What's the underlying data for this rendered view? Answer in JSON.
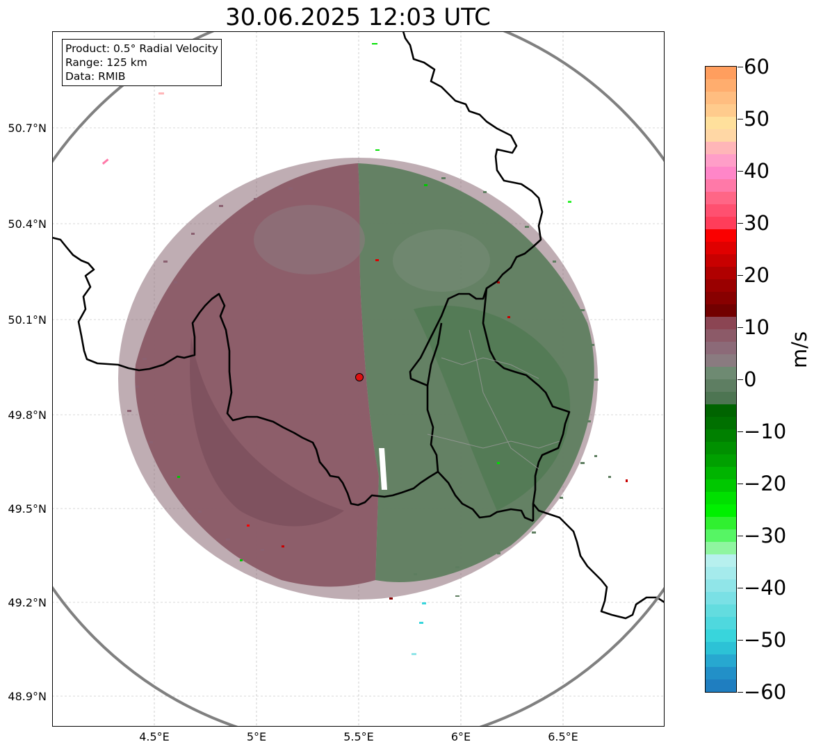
{
  "title": "30.06.2025 12:03 UTC",
  "info": {
    "product": "Product: 0.5° Radial Velocity",
    "range": "Range: 125 km",
    "data": "Data: RMIB"
  },
  "lat_labels": [
    "50.7°N",
    "50.4°N",
    "50.1°N",
    "49.8°N",
    "49.5°N",
    "49.2°N",
    "48.9°N"
  ],
  "lon_labels": [
    "4.5°E",
    "5°E",
    "5.5°E",
    "6°E",
    "6.5°E"
  ],
  "colorbar": {
    "unit": "m/s",
    "tick_labels": [
      "60",
      "50",
      "40",
      "30",
      "20",
      "10",
      "0",
      "−10",
      "−20",
      "−30",
      "−40",
      "−50",
      "−60"
    ],
    "min": -60,
    "max": 60,
    "colors_top_to_bottom": [
      "#ff9e5e",
      "#ffad6e",
      "#ffbd80",
      "#ffcb8d",
      "#ffe09c",
      "#ffd7a5",
      "#ffb6b8",
      "#ff9ec8",
      "#ff86c8",
      "#ff79a8",
      "#ff6686",
      "#ff5070",
      "#ff3d5a",
      "#fa0000",
      "#e00000",
      "#c80000",
      "#b00000",
      "#9a0000",
      "#880000",
      "#720000",
      "#8b4553",
      "#8c5a68",
      "#8c6a78",
      "#8a7b80",
      "#6e8a72",
      "#5e7e62",
      "#4d7552",
      "#006400",
      "#007000",
      "#008000",
      "#009000",
      "#00a000",
      "#00b400",
      "#00c800",
      "#00e000",
      "#00f000",
      "#30f030",
      "#56f564",
      "#8ff5a0",
      "#b7f0ee",
      "#a5ebec",
      "#90e5e8",
      "#7ae0e5",
      "#63dcdf",
      "#4fd8de",
      "#38d5dc",
      "#2cc2d6",
      "#27a8d0",
      "#2290c8",
      "#1f7ec0"
    ]
  },
  "map": {
    "radar_site": "red-dot",
    "range_ring_color": "#808080",
    "border_color": "#000000",
    "dominant_inbound_color": "#8a6070",
    "dominant_outbound_color": "#577a57"
  }
}
